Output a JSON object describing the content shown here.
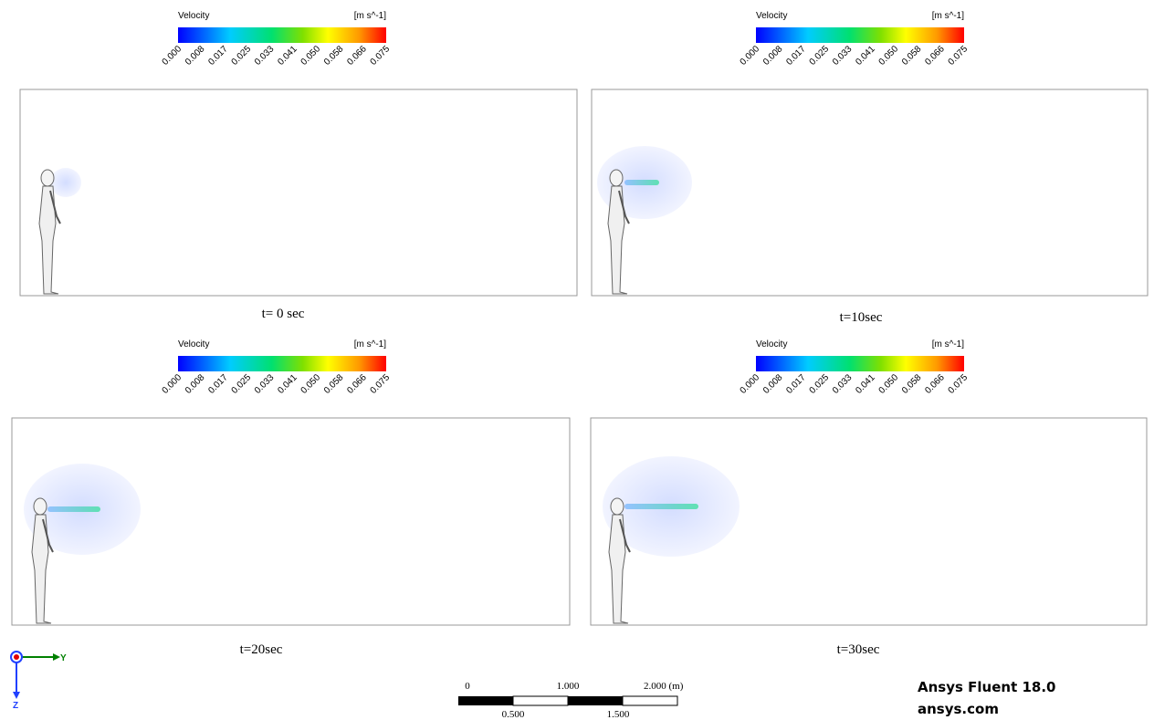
{
  "panels": [
    {
      "legend": {
        "title": "Velocity",
        "unit": "[m s^-1]",
        "ticks": [
          "0.000",
          "0.008",
          "0.017",
          "0.025",
          "0.033",
          "0.041",
          "0.050",
          "0.058",
          "0.066",
          "0.075"
        ]
      },
      "caption": "t= 0 sec"
    },
    {
      "legend": {
        "title": "Velocity",
        "unit": "[m s^-1]",
        "ticks": [
          "0.000",
          "0.008",
          "0.017",
          "0.025",
          "0.033",
          "0.041",
          "0.050",
          "0.058",
          "0.066",
          "0.075"
        ]
      },
      "caption": "t=10sec"
    },
    {
      "legend": {
        "title": "Velocity",
        "unit": "[m s^-1]",
        "ticks": [
          "0.000",
          "0.008",
          "0.017",
          "0.025",
          "0.033",
          "0.041",
          "0.050",
          "0.058",
          "0.066",
          "0.075"
        ]
      },
      "caption": "t=20sec"
    },
    {
      "legend": {
        "title": "Velocity",
        "unit": "[m s^-1]",
        "ticks": [
          "0.000",
          "0.008",
          "0.017",
          "0.025",
          "0.033",
          "0.041",
          "0.050",
          "0.058",
          "0.066",
          "0.075"
        ]
      },
      "caption": "t=30sec"
    }
  ],
  "axes": {
    "y": "Y",
    "z": "Z"
  },
  "scale_bar": {
    "labels_top": [
      "0",
      "1.000",
      "2.000 (m)"
    ],
    "labels_bottom": [
      "0.500",
      "1.500"
    ]
  },
  "brand": {
    "product": "Ansys Fluent 18.0",
    "site": "ansys.com"
  }
}
